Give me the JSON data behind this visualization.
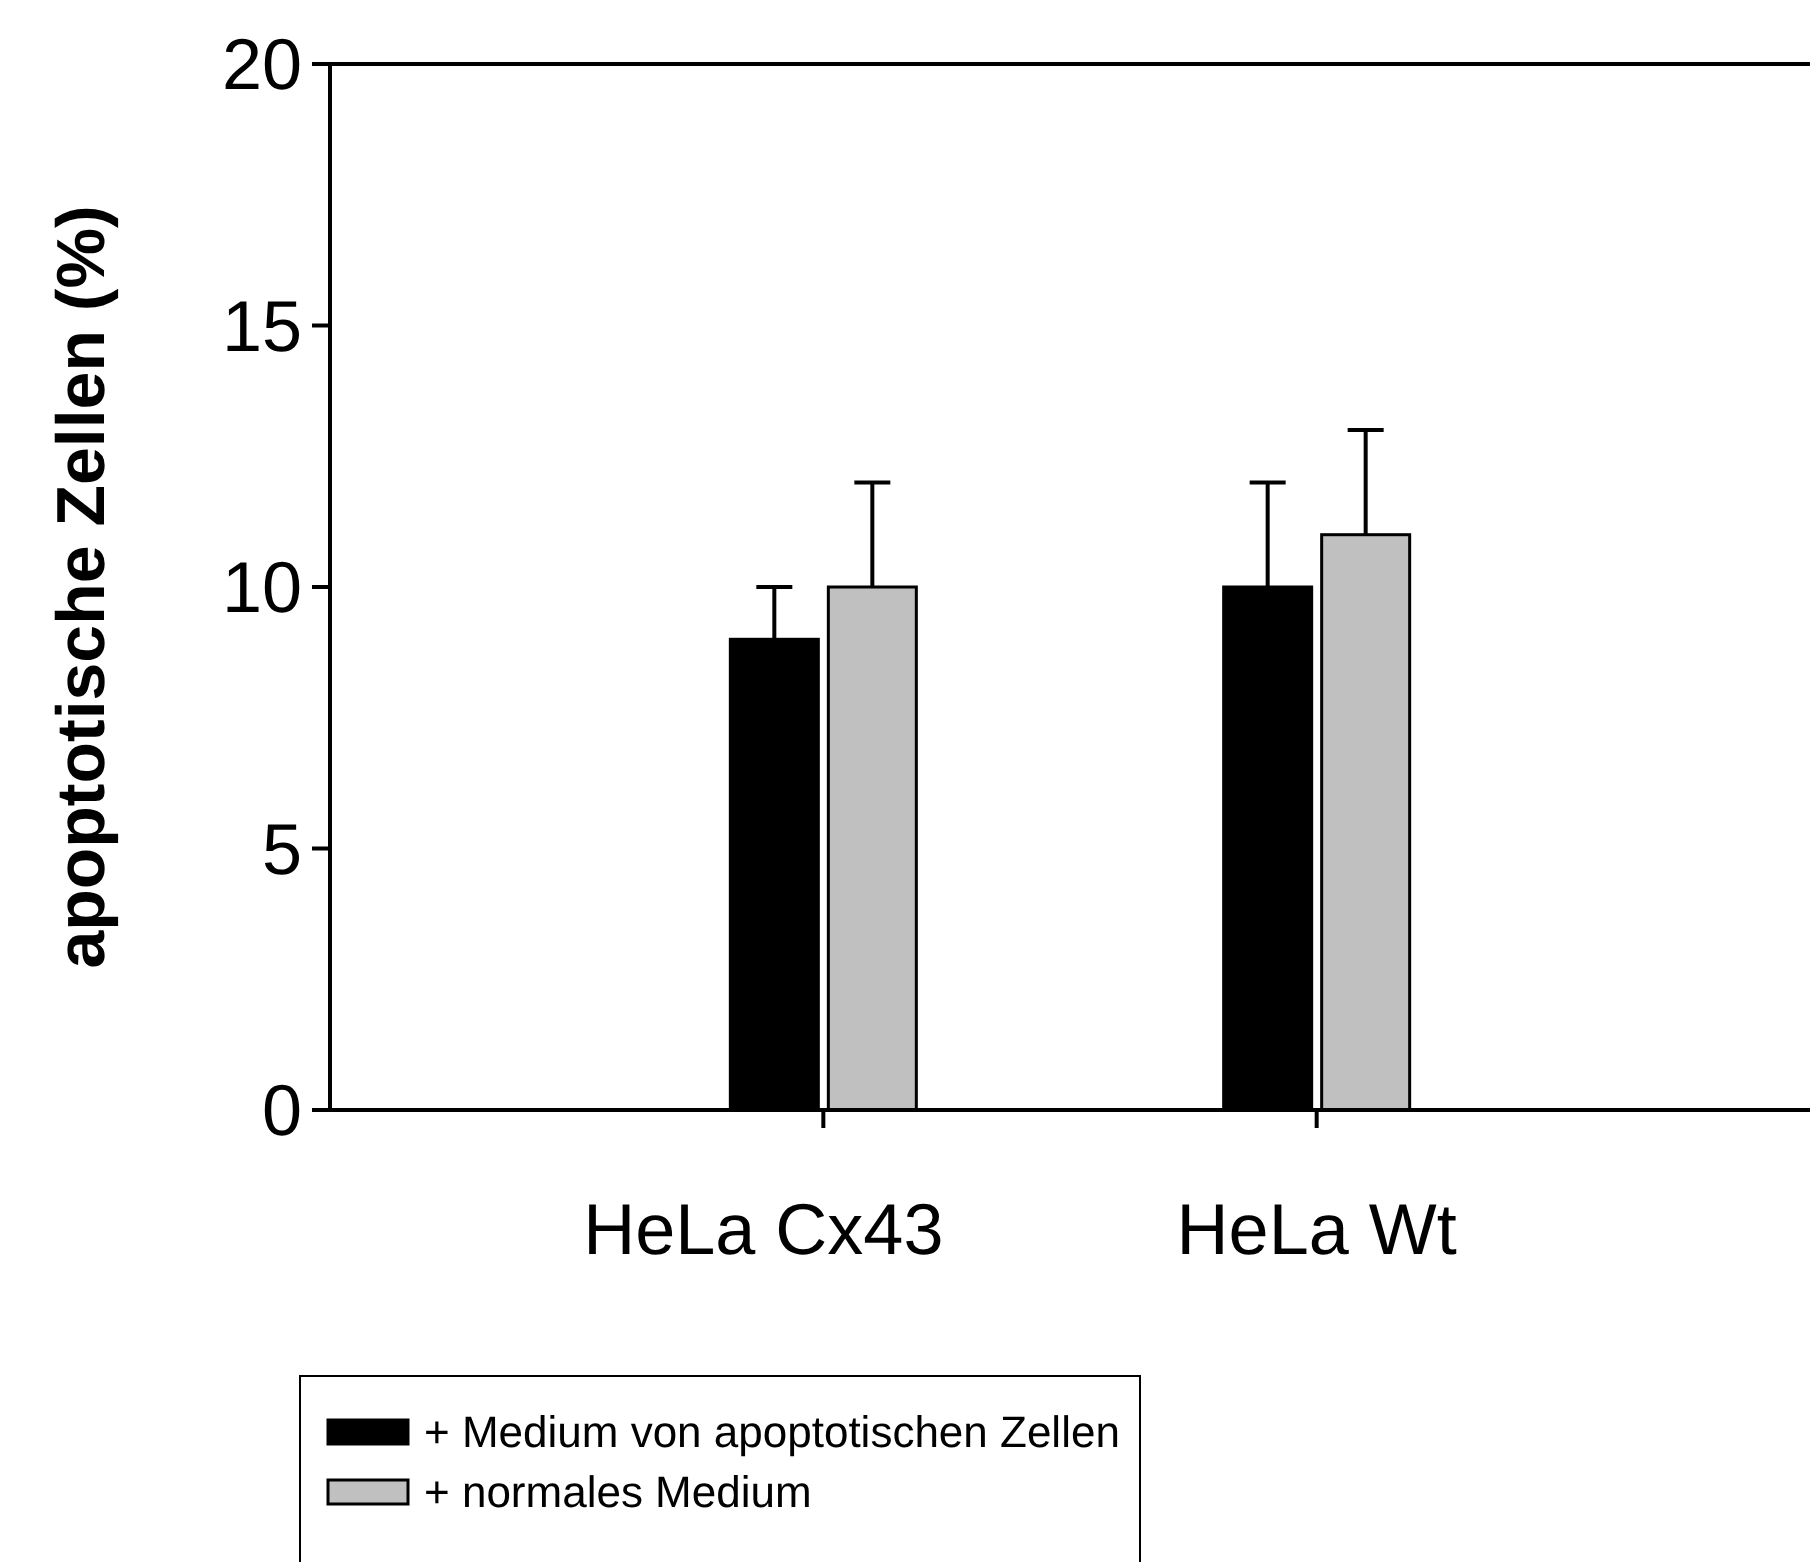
{
  "chart_data": {
    "type": "bar",
    "ylabel": "apoptotische Zellen (%)",
    "categories": [
      "HeLa Cx43",
      "HeLa Wt"
    ],
    "series": [
      {
        "name": "+ Medium von apoptotischen Zellen",
        "color": "#000000",
        "values": [
          9,
          10
        ],
        "errors": [
          [
            9,
            10
          ],
          [
            10,
            12
          ]
        ]
      },
      {
        "name": "+ normales Medium",
        "color": "#c0c0c0",
        "values": [
          10,
          11
        ],
        "errors": [
          [
            10,
            12
          ],
          [
            11,
            13
          ]
        ]
      }
    ],
    "ylim": [
      0,
      20
    ],
    "yticks": [
      0,
      5,
      10,
      15,
      20
    ],
    "grid": false,
    "legend": "bottom left"
  }
}
